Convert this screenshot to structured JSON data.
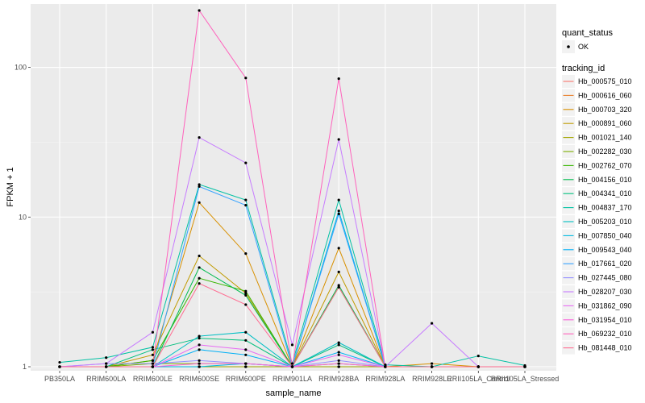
{
  "chart_data": {
    "type": "line",
    "xlabel": "sample_name",
    "ylabel": "FPKM + 1",
    "y_scale": "log10",
    "ylim": [
      0.94,
      265
    ],
    "y_ticks": [
      1,
      10,
      100
    ],
    "categories": [
      "PB350LA",
      "RRIM600LA",
      "RRIM600LE",
      "RRIM600SE",
      "RRIM600PE",
      "RRIM901LA",
      "RRIM928BA",
      "RRIM928LA",
      "RRIM928LE",
      "RRII105LA_Control",
      "RRII105LA_Stressed"
    ],
    "grid": true,
    "legend_placement": "right",
    "point_color": "#000000",
    "quant_status_legend": {
      "title": "quant_status",
      "entries": [
        "OK"
      ]
    },
    "series_legend_title": "tracking_id",
    "series": [
      {
        "name": "Hb_000575_010",
        "color": "#F8766D",
        "values": [
          1,
          1,
          1,
          1,
          1,
          1,
          1,
          1,
          1,
          1,
          1
        ]
      },
      {
        "name": "Hb_000616_060",
        "color": "#EA8331",
        "values": [
          1,
          1,
          1,
          1,
          1,
          1,
          1,
          1,
          1,
          1,
          1
        ]
      },
      {
        "name": "Hb_000703_320",
        "color": "#D89000",
        "values": [
          1,
          1,
          1.1,
          12.5,
          5.7,
          1,
          6.2,
          1,
          1.05,
          1,
          1
        ]
      },
      {
        "name": "Hb_000891_060",
        "color": "#C09B00",
        "values": [
          1,
          1,
          1.2,
          5.5,
          3.1,
          1,
          4.3,
          1,
          1,
          1,
          1
        ]
      },
      {
        "name": "Hb_001021_140",
        "color": "#A3A500",
        "values": [
          1,
          1,
          1,
          1,
          1,
          1,
          1,
          1,
          1,
          1,
          1
        ]
      },
      {
        "name": "Hb_002282_030",
        "color": "#7CAE00",
        "values": [
          1,
          1,
          1.05,
          1.05,
          1.05,
          1,
          1.05,
          1,
          1,
          1,
          1
        ]
      },
      {
        "name": "Hb_002762_070",
        "color": "#39B600",
        "values": [
          1,
          1,
          1.1,
          3.9,
          3.2,
          1,
          3.4,
          1,
          1,
          1,
          1
        ]
      },
      {
        "name": "Hb_004156_010",
        "color": "#00BB4E",
        "values": [
          1,
          1,
          1,
          4.6,
          3.0,
          1,
          3.5,
          1,
          1,
          1,
          1
        ]
      },
      {
        "name": "Hb_004341_010",
        "color": "#00BF7D",
        "values": [
          1,
          1,
          1.3,
          1.55,
          1.5,
          1,
          1.4,
          1,
          1,
          1,
          1
        ]
      },
      {
        "name": "Hb_004837_170",
        "color": "#00C1A3",
        "values": [
          1.07,
          1.15,
          1.35,
          16.5,
          13,
          1.05,
          13,
          1.03,
          1,
          1.18,
          1.02
        ]
      },
      {
        "name": "Hb_005203_010",
        "color": "#00BFC4",
        "values": [
          1,
          1,
          1,
          1.6,
          1.7,
          1,
          1.45,
          1,
          1,
          1,
          1
        ]
      },
      {
        "name": "Hb_007850_040",
        "color": "#00BAE0",
        "values": [
          1,
          1,
          1,
          1,
          1.05,
          1,
          11,
          1,
          1,
          1,
          1
        ]
      },
      {
        "name": "Hb_009543_040",
        "color": "#00B0F6",
        "values": [
          1,
          1,
          1,
          1.3,
          1.2,
          1,
          1.25,
          1,
          1,
          1,
          1
        ]
      },
      {
        "name": "Hb_017661_020",
        "color": "#35A2FF",
        "values": [
          1,
          1,
          1,
          16,
          12,
          1,
          10.5,
          1,
          1,
          1,
          1
        ]
      },
      {
        "name": "Hb_027445_080",
        "color": "#9590FF",
        "values": [
          1,
          1.05,
          1.05,
          1.1,
          1.05,
          1,
          1.1,
          1,
          1,
          1,
          1
        ]
      },
      {
        "name": "Hb_028207_030",
        "color": "#C77CFF",
        "values": [
          1,
          1.05,
          1.7,
          34,
          23,
          1.4,
          33,
          1,
          1.95,
          1,
          1
        ]
      },
      {
        "name": "Hb_031862_090",
        "color": "#E76BF3",
        "values": [
          1,
          1,
          1,
          1.4,
          1.3,
          1,
          1.2,
          1,
          1,
          1,
          1
        ]
      },
      {
        "name": "Hb_031954_010",
        "color": "#FA62DB",
        "values": [
          1,
          1,
          1,
          1.05,
          1.05,
          1,
          1.05,
          1,
          1,
          1,
          1
        ]
      },
      {
        "name": "Hb_069232_010",
        "color": "#FF62BC",
        "values": [
          1,
          1,
          1,
          240,
          85,
          1,
          84,
          1,
          1,
          1,
          1
        ]
      },
      {
        "name": "Hb_081448_010",
        "color": "#FF6C91",
        "values": [
          1,
          1,
          1,
          3.6,
          2.6,
          1,
          3.4,
          1,
          1,
          1,
          1
        ]
      }
    ]
  }
}
